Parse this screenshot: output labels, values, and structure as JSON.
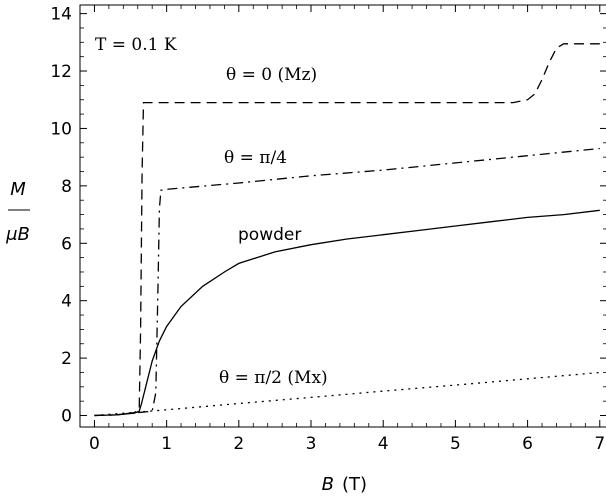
{
  "chart_data": {
    "type": "line",
    "xlabel": "B",
    "xlabel_unit": "(T)",
    "ylabel_top": "M",
    "ylabel_bottom": "μB",
    "xlim": [
      -0.2,
      7.1
    ],
    "ylim": [
      -0.4,
      14.3
    ],
    "grid": false,
    "x_ticks": [
      "0",
      "1",
      "2",
      "3",
      "4",
      "5",
      "6",
      "7"
    ],
    "y_ticks": [
      "0",
      "2",
      "4",
      "6",
      "8",
      "10",
      "12",
      "14"
    ],
    "x_tick_values": [
      0,
      1,
      2,
      3,
      4,
      5,
      6,
      7
    ],
    "y_tick_values": [
      0,
      2,
      4,
      6,
      8,
      10,
      12,
      14
    ],
    "annotations": {
      "temperature": "T = 0.1 K",
      "theta0": "θ = 0  (Mz)",
      "theta_pi4": "θ = π/4",
      "powder": "powder",
      "theta_pi2": "θ = π/2  (Mx)"
    },
    "series": [
      {
        "name": "θ = 0  (Mz)",
        "style": "dashed",
        "x": [
          0,
          0.3,
          0.55,
          0.62,
          0.64,
          0.66,
          0.68,
          1.0,
          2.0,
          3.0,
          4.0,
          5.0,
          5.8,
          6.0,
          6.1,
          6.2,
          6.3,
          6.4,
          6.5,
          6.7,
          7.0
        ],
        "y": [
          0,
          0.02,
          0.1,
          0.2,
          3.0,
          8.5,
          10.9,
          10.9,
          10.9,
          10.9,
          10.9,
          10.9,
          10.9,
          11.0,
          11.2,
          11.7,
          12.3,
          12.8,
          12.95,
          12.95,
          12.95
        ]
      },
      {
        "name": "θ = π/4",
        "style": "dashdot",
        "x": [
          0,
          0.3,
          0.6,
          0.8,
          0.85,
          0.88,
          0.9,
          0.92,
          1.0,
          2.0,
          3.0,
          4.0,
          5.0,
          6.0,
          7.0
        ],
        "y": [
          0,
          0.02,
          0.1,
          0.15,
          0.8,
          4.5,
          7.2,
          7.85,
          7.88,
          8.1,
          8.35,
          8.55,
          8.8,
          9.05,
          9.3
        ]
      },
      {
        "name": "powder",
        "x": [
          0,
          0.3,
          0.55,
          0.62,
          0.65,
          0.7,
          0.75,
          0.8,
          0.9,
          1.0,
          1.2,
          1.5,
          1.8,
          2.0,
          2.5,
          3.0,
          3.5,
          4.0,
          4.5,
          5.0,
          5.5,
          6.0,
          6.5,
          7.0
        ],
        "y": [
          0,
          0.02,
          0.08,
          0.15,
          0.4,
          0.9,
          1.4,
          1.9,
          2.6,
          3.1,
          3.8,
          4.5,
          5.0,
          5.3,
          5.7,
          5.95,
          6.15,
          6.3,
          6.45,
          6.6,
          6.75,
          6.9,
          7.0,
          7.15
        ]
      },
      {
        "name": "θ = π/2  (Mx)",
        "style": "dotted",
        "x": [
          0,
          1,
          2,
          3,
          4,
          5,
          6,
          7
        ],
        "y": [
          0,
          0.2,
          0.42,
          0.63,
          0.85,
          1.06,
          1.28,
          1.5
        ]
      }
    ]
  }
}
